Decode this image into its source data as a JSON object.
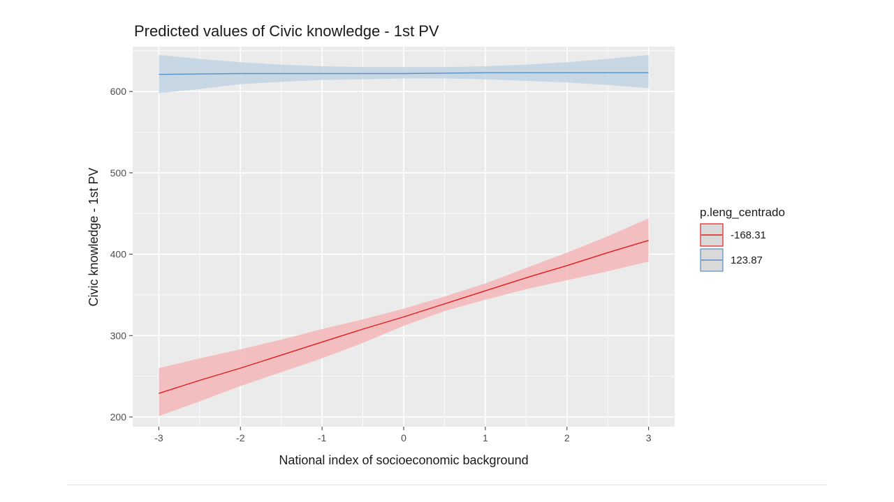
{
  "chart_data": {
    "type": "line",
    "title": "Predicted values of Civic knowledge - 1st PV",
    "xlabel": "National index of socioeconomic background",
    "ylabel": "Civic knowledge - 1st PV",
    "xlim": [
      -3.32,
      3.32
    ],
    "ylim": [
      188,
      655
    ],
    "x_ticks": [
      -3,
      -2,
      -1,
      0,
      1,
      2,
      3
    ],
    "x_tick_labels": [
      "-3",
      "-2",
      "-1",
      "0",
      "1",
      "2",
      "3"
    ],
    "y_ticks": [
      200,
      300,
      400,
      500,
      600
    ],
    "y_tick_labels": [
      "200",
      "300",
      "400",
      "500",
      "600"
    ],
    "grid": true,
    "legend": {
      "title": "p.leng_centrado",
      "position": "right"
    },
    "series": [
      {
        "name": "-168.31",
        "color": "#e41a1c",
        "ribbon_color": "#f4b6b9",
        "x": [
          -3,
          -2.5,
          -2,
          -1.5,
          -1,
          -0.5,
          0,
          0.5,
          1,
          1.5,
          2,
          2.5,
          3
        ],
        "y": [
          229,
          245,
          260,
          276,
          292,
          308,
          323,
          339,
          355,
          371,
          386,
          402,
          417
        ],
        "lower": [
          201,
          219,
          238,
          255,
          272,
          291,
          312,
          330,
          344,
          357,
          368,
          379,
          391
        ],
        "upper": [
          260,
          272,
          283,
          295,
          308,
          320,
          333,
          348,
          364,
          383,
          402,
          422,
          444
        ]
      },
      {
        "name": "123.87",
        "color": "#5a8fc4",
        "ribbon_color": "#c1d3e3",
        "x": [
          -3,
          -2.5,
          -2,
          -1.5,
          -1,
          -0.5,
          0,
          0.5,
          1,
          1.5,
          2,
          2.5,
          3
        ],
        "y": [
          621,
          621.5,
          622,
          622,
          622,
          622,
          622,
          622.5,
          623,
          623,
          623,
          623,
          623
        ],
        "lower": [
          598,
          603,
          609,
          612,
          614,
          615,
          616,
          616,
          615,
          613,
          611,
          608,
          604
        ],
        "upper": [
          645,
          640,
          636,
          633,
          631,
          630,
          630,
          630,
          631,
          633,
          636,
          640,
          645
        ]
      }
    ]
  }
}
